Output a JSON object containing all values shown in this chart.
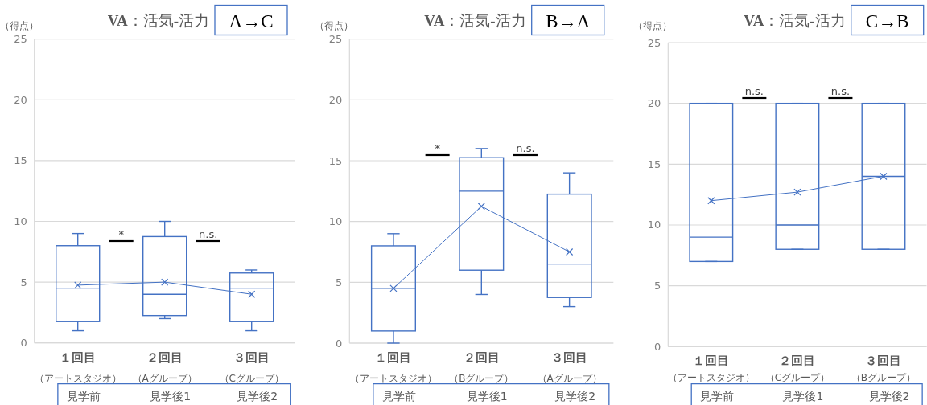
{
  "chart_data": [
    {
      "type": "box",
      "title": "**VA**：活気-活力",
      "subtitle": "A→C",
      "ylabel": "（得点）",
      "categories": [
        "**１回目**（アートスタジオ）見学前",
        "**２回目**（Aグループ）見学後1",
        "**３回目**（Cグループ）見学後2"
      ],
      "ylim": [
        0,
        25
      ],
      "yticks": [
        0,
        5,
        10,
        15,
        20,
        25
      ],
      "grid": "y",
      "annotations": [
        "*",
        "n.s."
      ],
      "series": [
        {
          "color": "#4472c4",
          "boxes": [
            {
              "low": 1,
              "q1": 1.75,
              "median": 4.5,
              "q3": 8,
              "high": 9
            },
            {
              "low": 2,
              "q1": 2.25,
              "median": 4,
              "q3": 8.75,
              "high": 10
            },
            {
              "low": 1,
              "q1": 1.75,
              "median": 4.5,
              "q3": 5.75,
              "high": 6
            }
          ]
        },
        {
          "type": "line",
          "color": "#4472c4",
          "marker": "cross",
          "values": [
            4.75,
            5,
            4
          ]
        }
      ]
    },
    {
      "type": "box",
      "title": "**VA**：活気-活力",
      "subtitle": "B→A",
      "ylabel": "（得点）",
      "categories": [
        "**１回目**（アートスタジオ）見学前",
        "**２回目**（Bグループ）見学後1",
        "**３回目**（Aグループ）見学後2"
      ],
      "ylim": [
        0,
        25
      ],
      "yticks": [
        0,
        5,
        10,
        15,
        20,
        25
      ],
      "grid": "y",
      "annotations": [
        "*",
        "n.s."
      ],
      "series": [
        {
          "color": "#4472c4",
          "boxes": [
            {
              "low": 0,
              "q1": 1,
              "median": 4.5,
              "q3": 8,
              "high": 9
            },
            {
              "low": 4,
              "q1": 6,
              "median": 12.5,
              "q3": 15.25,
              "high": 16
            },
            {
              "low": 3,
              "q1": 3.75,
              "median": 6.5,
              "q3": 12.25,
              "high": 14
            }
          ]
        },
        {
          "type": "line",
          "color": "#4472c4",
          "marker": "cross",
          "values": [
            4.5,
            11.25,
            7.5
          ]
        }
      ]
    },
    {
      "type": "box",
      "title": "**VA**：活気-活力",
      "subtitle": "C→B",
      "ylabel": "（得点）",
      "categories": [
        "**１回目**（アートスタジオ）見学前",
        "**２回目**（Cグループ）見学後1",
        "**３回目**（Bグループ）見学後2"
      ],
      "ylim": [
        0,
        25
      ],
      "yticks": [
        0,
        5,
        10,
        15,
        20,
        25
      ],
      "grid": "y",
      "annotations": [
        "n.s.",
        "n.s."
      ],
      "series": [
        {
          "color": "#4472c4",
          "boxes": [
            {
              "low": 7,
              "q1": 7,
              "median": 9,
              "q3": 20,
              "high": 20
            },
            {
              "low": 8,
              "q1": 8,
              "median": 10,
              "q3": 20,
              "high": 20
            },
            {
              "low": 8,
              "q1": 8,
              "median": 14,
              "q3": 20,
              "high": 20
            }
          ]
        },
        {
          "type": "line",
          "color": "#4472c4",
          "marker": "cross",
          "values": [
            12,
            12.7,
            14
          ]
        }
      ]
    }
  ]
}
